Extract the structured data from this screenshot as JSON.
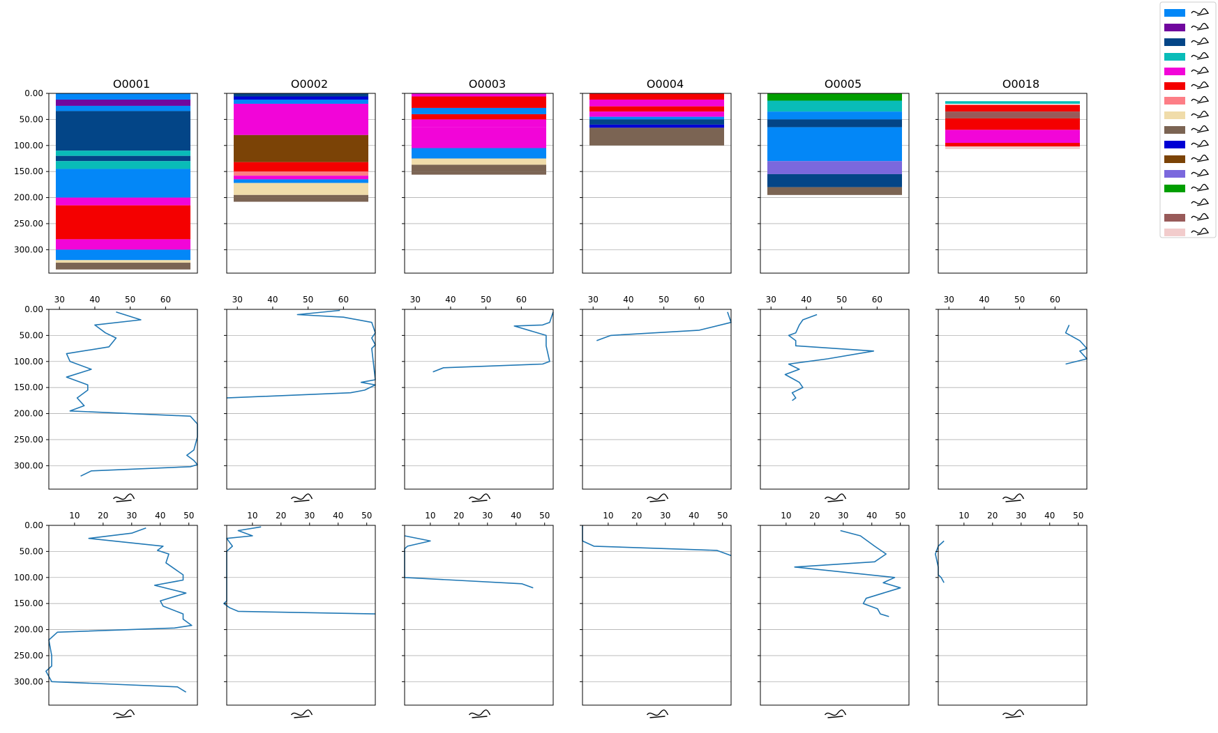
{
  "legend": {
    "colors": [
      "#0387f7",
      "#70079e",
      "#034587",
      "#09bcb8",
      "#f205d8",
      "#f40000",
      "#fd7e86",
      "#f0dcaa",
      "#7b6453",
      "#0000d4",
      "#7b4306",
      "#7b68dd",
      "#009e00",
      "#ffffff",
      "#985a59",
      "#f2cccc"
    ]
  },
  "chart_data": [
    {
      "type": "bar",
      "row": "stacked-core-logs",
      "orientation": "vertical-stack",
      "panels": [
        {
          "title": "O0001",
          "layers": [
            [
              0,
              12,
              0
            ],
            [
              12,
              24,
              1
            ],
            [
              24,
              34,
              0
            ],
            [
              34,
              110,
              2
            ],
            [
              110,
              120,
              3
            ],
            [
              120,
              130,
              2
            ],
            [
              130,
              145,
              3
            ],
            [
              145,
              200,
              0
            ],
            [
              200,
              215,
              4
            ],
            [
              215,
              280,
              5
            ],
            [
              280,
              300,
              4
            ],
            [
              300,
              320,
              0
            ],
            [
              320,
              325,
              7
            ],
            [
              325,
              338,
              8
            ]
          ]
        },
        {
          "title": "O0002",
          "layers": [
            [
              0,
              6,
              2
            ],
            [
              6,
              12,
              9
            ],
            [
              12,
              20,
              0
            ],
            [
              20,
              80,
              4
            ],
            [
              80,
              132,
              10
            ],
            [
              132,
              150,
              5
            ],
            [
              150,
              158,
              6
            ],
            [
              158,
              165,
              4
            ],
            [
              165,
              172,
              0
            ],
            [
              172,
              195,
              7
            ],
            [
              195,
              200,
              8
            ],
            [
              200,
              208,
              8
            ]
          ]
        },
        {
          "title": "O0003",
          "layers": [
            [
              0,
              6,
              4
            ],
            [
              6,
              28,
              5
            ],
            [
              28,
              40,
              0
            ],
            [
              40,
              50,
              5
            ],
            [
              50,
              65,
              4
            ],
            [
              65,
              105,
              4
            ],
            [
              105,
              125,
              0
            ],
            [
              125,
              137,
              7
            ],
            [
              137,
              150,
              8
            ],
            [
              150,
              156,
              8
            ]
          ]
        },
        {
          "title": "O0004",
          "layers": [
            [
              0,
              12,
              5
            ],
            [
              12,
              25,
              4
            ],
            [
              25,
              35,
              5
            ],
            [
              35,
              45,
              4
            ],
            [
              45,
              50,
              0
            ],
            [
              50,
              60,
              2
            ],
            [
              60,
              66,
              9
            ],
            [
              66,
              100,
              8
            ]
          ]
        },
        {
          "title": "O0005",
          "layers": [
            [
              0,
              14,
              12
            ],
            [
              14,
              35,
              3
            ],
            [
              35,
              50,
              0
            ],
            [
              50,
              65,
              2
            ],
            [
              65,
              130,
              0
            ],
            [
              130,
              155,
              11
            ],
            [
              155,
              180,
              2
            ],
            [
              180,
              195,
              8
            ]
          ]
        },
        {
          "title": "O0018",
          "layers": [
            [
              15,
              20,
              3
            ],
            [
              20,
              22,
              13
            ],
            [
              22,
              35,
              5
            ],
            [
              35,
              48,
              14
            ],
            [
              48,
              70,
              5
            ],
            [
              70,
              95,
              4
            ],
            [
              95,
              102,
              5
            ],
            [
              102,
              107,
              15
            ]
          ]
        }
      ],
      "ylim": [
        0,
        345
      ],
      "yticks": [
        "0.00",
        "50.00",
        "100.00",
        "150.00",
        "200.00",
        "250.00",
        "300.00"
      ],
      "grid": true
    },
    {
      "type": "line",
      "row": "middle-profile",
      "xlim": [
        27,
        69
      ],
      "xticks": [
        30,
        40,
        50,
        60
      ],
      "ylim": [
        0,
        345
      ],
      "grid": true,
      "series": [
        [
          [
            46,
            5
          ],
          [
            53,
            20
          ],
          [
            40,
            30
          ],
          [
            43,
            45
          ],
          [
            46,
            55
          ],
          [
            44,
            72
          ],
          [
            32,
            85
          ],
          [
            33,
            100
          ],
          [
            39,
            115
          ],
          [
            32,
            130
          ],
          [
            38,
            145
          ],
          [
            38,
            155
          ],
          [
            35,
            170
          ],
          [
            37,
            185
          ],
          [
            33,
            195
          ],
          [
            67,
            205
          ],
          [
            69,
            220
          ],
          [
            69,
            245
          ],
          [
            68,
            270
          ],
          [
            66,
            280
          ],
          [
            68,
            290
          ],
          [
            69,
            298
          ],
          [
            67,
            302
          ],
          [
            39,
            310
          ],
          [
            36,
            320
          ]
        ],
        [
          [
            59,
            2
          ],
          [
            47,
            10
          ],
          [
            60,
            15
          ],
          [
            68,
            25
          ],
          [
            69,
            45
          ],
          [
            68,
            55
          ],
          [
            69,
            68
          ],
          [
            68,
            75
          ],
          [
            69,
            135
          ],
          [
            65,
            140
          ],
          [
            69,
            145
          ],
          [
            66,
            155
          ],
          [
            62,
            160
          ],
          [
            27,
            170
          ]
        ],
        [
          [
            69,
            5
          ],
          [
            68,
            25
          ],
          [
            66,
            30
          ],
          [
            58,
            32
          ],
          [
            67,
            50
          ],
          [
            67,
            70
          ],
          [
            68,
            100
          ],
          [
            66,
            105
          ],
          [
            38,
            112
          ],
          [
            35,
            120
          ]
        ],
        [
          [
            68,
            5
          ],
          [
            69,
            25
          ],
          [
            60,
            40
          ],
          [
            35,
            50
          ],
          [
            31,
            60
          ]
        ],
        [
          [
            43,
            10
          ],
          [
            39,
            20
          ],
          [
            38,
            30
          ],
          [
            37,
            45
          ],
          [
            35,
            50
          ],
          [
            37,
            60
          ],
          [
            37,
            70
          ],
          [
            59,
            80
          ],
          [
            46,
            95
          ],
          [
            35,
            105
          ],
          [
            38,
            115
          ],
          [
            34,
            125
          ],
          [
            38,
            140
          ],
          [
            39,
            150
          ],
          [
            36,
            160
          ],
          [
            37,
            170
          ],
          [
            36,
            175
          ]
        ],
        [
          [
            64,
            30
          ],
          [
            63,
            45
          ],
          [
            67,
            60
          ],
          [
            69,
            75
          ],
          [
            67,
            80
          ],
          [
            69,
            95
          ],
          [
            63,
            105
          ]
        ]
      ]
    },
    {
      "type": "line",
      "row": "bottom-profile",
      "xlim": [
        1,
        53
      ],
      "xticks": [
        10,
        20,
        30,
        40,
        50
      ],
      "ylim": [
        0,
        345
      ],
      "grid": true,
      "series": [
        [
          [
            35,
            5
          ],
          [
            30,
            15
          ],
          [
            15,
            25
          ],
          [
            41,
            40
          ],
          [
            39,
            48
          ],
          [
            43,
            55
          ],
          [
            42,
            72
          ],
          [
            48,
            95
          ],
          [
            48,
            105
          ],
          [
            38,
            115
          ],
          [
            49,
            130
          ],
          [
            40,
            145
          ],
          [
            41,
            155
          ],
          [
            48,
            170
          ],
          [
            48,
            180
          ],
          [
            51,
            192
          ],
          [
            45,
            197
          ],
          [
            4,
            205
          ],
          [
            1,
            220
          ],
          [
            2,
            250
          ],
          [
            2,
            270
          ],
          [
            0,
            280
          ],
          [
            2,
            300
          ],
          [
            46,
            310
          ],
          [
            49,
            320
          ]
        ],
        [
          [
            13,
            3
          ],
          [
            5,
            10
          ],
          [
            10,
            20
          ],
          [
            1,
            25
          ],
          [
            3,
            40
          ],
          [
            1,
            50
          ],
          [
            1,
            80
          ],
          [
            1,
            135
          ],
          [
            1,
            145
          ],
          [
            0,
            150
          ],
          [
            2,
            158
          ],
          [
            5,
            165
          ],
          [
            53,
            170
          ]
        ],
        [
          [
            1,
            20
          ],
          [
            10,
            30
          ],
          [
            2,
            40
          ],
          [
            1,
            45
          ],
          [
            1,
            100
          ],
          [
            42,
            112
          ],
          [
            46,
            120
          ]
        ],
        [
          [
            1,
            0
          ],
          [
            1,
            30
          ],
          [
            5,
            40
          ],
          [
            48,
            48
          ],
          [
            53,
            58
          ]
        ],
        [
          [
            29,
            10
          ],
          [
            36,
            20
          ],
          [
            41,
            40
          ],
          [
            45,
            55
          ],
          [
            41,
            70
          ],
          [
            13,
            80
          ],
          [
            48,
            100
          ],
          [
            44,
            110
          ],
          [
            50,
            120
          ],
          [
            44,
            130
          ],
          [
            38,
            140
          ],
          [
            37,
            150
          ],
          [
            42,
            160
          ],
          [
            43,
            170
          ],
          [
            46,
            175
          ]
        ],
        [
          [
            3,
            30
          ],
          [
            1,
            40
          ],
          [
            0,
            55
          ],
          [
            1,
            80
          ],
          [
            1,
            95
          ],
          [
            2,
            100
          ],
          [
            3,
            110
          ]
        ]
      ]
    }
  ]
}
